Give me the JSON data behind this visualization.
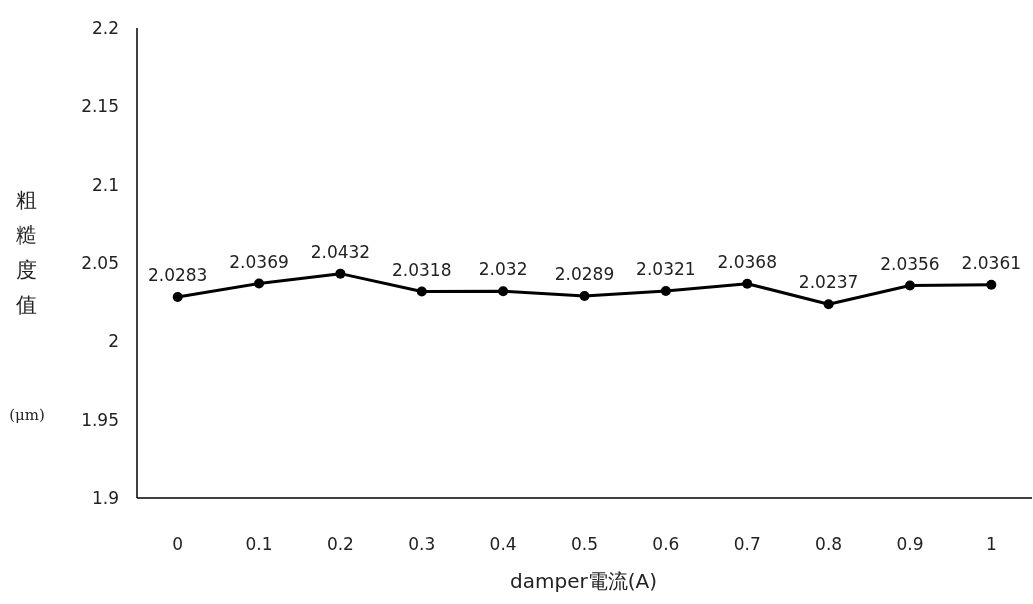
{
  "chart_data": {
    "type": "line",
    "xlabel": "damper電流(A)",
    "ylabel": "粗糙度值(μm)",
    "categories": [
      "0",
      "0.1",
      "0.2",
      "0.3",
      "0.4",
      "0.5",
      "0.6",
      "0.7",
      "0.8",
      "0.9",
      "1"
    ],
    "values": [
      2.0283,
      2.0369,
      2.0432,
      2.0318,
      2.032,
      2.0289,
      2.0321,
      2.0368,
      2.0237,
      2.0356,
      2.0361
    ],
    "color": "#000000",
    "marker": "circle",
    "line_style": "solid",
    "data_labels": true,
    "ylim": [
      1.9,
      2.2
    ],
    "yticks": [
      1.9,
      1.95,
      2,
      2.05,
      2.1,
      2.15,
      2.2
    ]
  }
}
